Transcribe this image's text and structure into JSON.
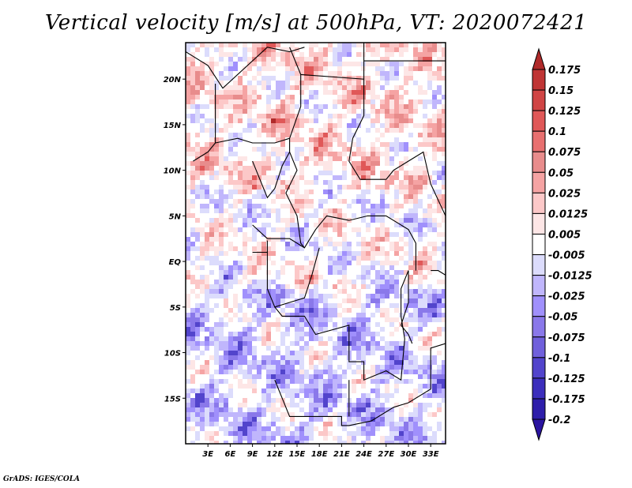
{
  "title": "Vertical velocity [m/s] at 500hPa, VT: 2020072421",
  "footer": "GrADS: IGES/COLA",
  "map": {
    "variable": "Vertical velocity",
    "units": "m/s",
    "level": "500hPa",
    "valid_time": "2020072421",
    "region": "Central Africa",
    "lon_range": [
      0,
      35
    ],
    "lat_range": [
      -20,
      24
    ],
    "y_ticks": [
      {
        "lat": 20,
        "label": "20N"
      },
      {
        "lat": 15,
        "label": "15N"
      },
      {
        "lat": 10,
        "label": "10N"
      },
      {
        "lat": 5,
        "label": "5N"
      },
      {
        "lat": 0,
        "label": "EQ"
      },
      {
        "lat": -5,
        "label": "5S"
      },
      {
        "lat": -10,
        "label": "10S"
      },
      {
        "lat": -15,
        "label": "15S"
      }
    ],
    "x_ticks": [
      {
        "lon": 3,
        "label": "3E"
      },
      {
        "lon": 6,
        "label": "6E"
      },
      {
        "lon": 9,
        "label": "9E"
      },
      {
        "lon": 12,
        "label": "12E"
      },
      {
        "lon": 15,
        "label": "15E"
      },
      {
        "lon": 18,
        "label": "18E"
      },
      {
        "lon": 21,
        "label": "21E"
      },
      {
        "lon": 24,
        "label": "24E"
      },
      {
        "lon": 27,
        "label": "27E"
      },
      {
        "lon": 30,
        "label": "30E"
      },
      {
        "lon": 33,
        "label": "33E"
      }
    ]
  },
  "colorbar": {
    "labels": [
      "0.175",
      "0.15",
      "0.125",
      "0.1",
      "0.075",
      "0.05",
      "0.025",
      "0.0125",
      "0.005",
      "-0.005",
      "-0.0125",
      "-0.025",
      "-0.05",
      "-0.075",
      "-0.1",
      "-0.125",
      "-0.175",
      "-0.2"
    ],
    "colors": [
      "#b02a2a",
      "#c03535",
      "#d04545",
      "#e05858",
      "#e87070",
      "#e88c8c",
      "#f5a3a3",
      "#fcc8c8",
      "#fde6e6",
      "#ffffff",
      "#dcdcfc",
      "#c0b6fc",
      "#a090fc",
      "#8a78ea",
      "#7060dc",
      "#5244cc",
      "#3c2ebc",
      "#2e1eaa",
      "#2a14a0"
    ]
  }
}
